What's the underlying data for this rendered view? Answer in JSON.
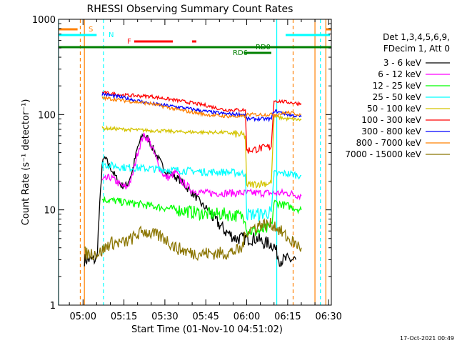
{
  "chart_data": {
    "type": "line",
    "title": "RHESSI Observing Summary Count Rates",
    "xlabel": "Start Time (01-Nov-10 04:51:02)",
    "ylabel": "Count Rate (s⁻¹ detector⁻¹)",
    "y_scale": "log",
    "ylim": [
      1,
      1000
    ],
    "xlim": [
      "04:51:02",
      "06:31:00"
    ],
    "x_ticks": [
      "05:00",
      "05:15",
      "05:30",
      "05:45",
      "06:00",
      "06:15",
      "06:30"
    ],
    "y_ticks": [
      "1",
      "10",
      "100",
      "1000"
    ],
    "grid": false,
    "legend_position": "right",
    "legend_header": [
      "Det 1,3,4,5,6,9,",
      "FDecim 1, Att 0"
    ],
    "footer_date": "17-Oct-2021 00:49",
    "series": [
      {
        "name": "3 - 6 keV",
        "color": "#000000",
        "x": [
          "05:00:30",
          "05:05",
          "05:07",
          "05:08",
          "05:10",
          "05:12",
          "05:14",
          "05:16",
          "05:18",
          "05:20",
          "05:22",
          "05:24",
          "05:26",
          "05:28",
          "05:30",
          "05:32",
          "05:34",
          "05:36",
          "05:38",
          "05:40",
          "05:42",
          "05:44",
          "05:46",
          "05:48",
          "05:50",
          "05:52",
          "05:54",
          "05:56",
          "05:58",
          "06:00",
          "06:02",
          "06:04",
          "06:06",
          "06:08",
          "06:10",
          "06:12",
          "06:14",
          "06:16",
          "06:18"
        ],
        "y": [
          3,
          3,
          30,
          35,
          28,
          22,
          18,
          18,
          25,
          45,
          62,
          55,
          42,
          33,
          26,
          24,
          22,
          20,
          17,
          15,
          13,
          11,
          10,
          8,
          7,
          6,
          5.5,
          5,
          5,
          5,
          5,
          5,
          4.5,
          4.5,
          4.2,
          3,
          3,
          3,
          3
        ]
      },
      {
        "name": "6 - 12 keV",
        "color": "#ff00ff",
        "x": [
          "05:07",
          "05:10",
          "05:12",
          "05:14",
          "05:16",
          "05:18",
          "05:20",
          "05:22",
          "05:24",
          "05:26",
          "05:28",
          "05:30",
          "05:32",
          "05:34",
          "05:36",
          "05:38",
          "05:40",
          "05:45",
          "05:50",
          "05:55",
          "06:00",
          "06:05",
          "06:10",
          "06:15",
          "06:20"
        ],
        "y": [
          20,
          22,
          20,
          18,
          17,
          22,
          40,
          60,
          55,
          40,
          28,
          22,
          22,
          25,
          20,
          18,
          16,
          15,
          15,
          15,
          15,
          15,
          15,
          15,
          14
        ]
      },
      {
        "name": "12 - 25 keV",
        "color": "#00ff00",
        "x": [
          "05:07",
          "05:15",
          "05:25",
          "05:35",
          "05:45",
          "05:52",
          "05:59:30",
          "06:00",
          "06:05",
          "06:09",
          "06:10",
          "06:15",
          "06:20"
        ],
        "y": [
          13,
          12,
          11,
          10,
          9,
          9,
          8.5,
          6,
          6,
          6.5,
          12,
          11,
          10
        ]
      },
      {
        "name": "25 - 50 keV",
        "color": "#00ffff",
        "x": [
          "05:07",
          "05:15",
          "05:25",
          "05:35",
          "05:45",
          "05:52",
          "05:59:30",
          "06:00",
          "06:05",
          "06:09",
          "06:10",
          "06:15",
          "06:20"
        ],
        "y": [
          30,
          28,
          27,
          26,
          25,
          25,
          24,
          9,
          9,
          9.5,
          24,
          24,
          23
        ]
      },
      {
        "name": "50 - 100 keV",
        "color": "#d4c400",
        "x": [
          "05:07",
          "05:15",
          "05:25",
          "05:35",
          "05:45",
          "05:52",
          "05:59:30",
          "06:00",
          "06:05",
          "06:09",
          "06:10",
          "06:15",
          "06:20"
        ],
        "y": [
          72,
          70,
          68,
          66,
          65,
          65,
          60,
          18,
          19,
          19,
          95,
          90,
          88
        ]
      },
      {
        "name": "100 - 300 keV",
        "color": "#ff0000",
        "x": [
          "05:07",
          "05:15",
          "05:25",
          "05:35",
          "05:45",
          "05:52",
          "05:59:30",
          "06:00",
          "06:05",
          "06:09",
          "06:10",
          "06:15",
          "06:20"
        ],
        "y": [
          170,
          160,
          155,
          140,
          125,
          112,
          112,
          42,
          44,
          46,
          140,
          135,
          130
        ]
      },
      {
        "name": "300 - 800 keV",
        "color": "#0000ff",
        "x": [
          "05:07",
          "05:15",
          "05:25",
          "05:35",
          "05:45",
          "05:52",
          "05:59:30",
          "06:00",
          "06:05",
          "06:09",
          "06:10",
          "06:15",
          "06:20"
        ],
        "y": [
          165,
          150,
          130,
          120,
          108,
          102,
          100,
          90,
          90,
          90,
          110,
          100,
          95
        ]
      },
      {
        "name": "800 - 7000 keV",
        "color": "#ff8000",
        "x": [
          "05:07",
          "05:15",
          "05:25",
          "05:35",
          "05:45",
          "05:52",
          "05:59:30",
          "06:00",
          "06:05",
          "06:09",
          "06:10",
          "06:15",
          "06:20"
        ],
        "y": [
          150,
          140,
          130,
          112,
          100,
          96,
          95,
          100,
          100,
          100,
          100,
          105,
          100
        ]
      },
      {
        "name": "7000 - 15000 keV",
        "color": "#8b7500",
        "x": [
          "05:00:30",
          "05:06",
          "05:10",
          "05:15",
          "05:18",
          "05:22",
          "05:26",
          "05:30",
          "05:34",
          "05:40",
          "05:46",
          "05:52",
          "05:58",
          "06:00",
          "06:05",
          "06:09",
          "06:10",
          "06:15",
          "06:20"
        ],
        "y": [
          3.5,
          3.5,
          4.5,
          4.5,
          5,
          6,
          5.5,
          5,
          4,
          3.5,
          3.5,
          3.5,
          3.8,
          6,
          7,
          7,
          7,
          5,
          4
        ]
      }
    ],
    "annotations": [
      {
        "label": "S",
        "color": "#ff8000",
        "x_start": "04:51:02",
        "x_end": "04:58"
      },
      {
        "label": "N",
        "color": "#00ffff",
        "x_start": "04:51:02",
        "x_end": "05:05"
      },
      {
        "label": "F",
        "color": "#ff0000",
        "x_start": "05:17",
        "x_end": "05:30"
      },
      {
        "label": "RD0",
        "color": "#008000",
        "x_start": "04:51:02",
        "x_end": "06:31:00"
      },
      {
        "label": "RD6",
        "color": "#008000",
        "x_start": "05:59",
        "x_end": "06:09"
      }
    ],
    "vertical_lines": [
      {
        "time": "04:51:02",
        "color": "#00ffff",
        "style": "solid"
      },
      {
        "time": "04:59",
        "color": "#ff8000",
        "style": "dashed"
      },
      {
        "time": "05:00:30",
        "color": "#ff8000",
        "style": "solid"
      },
      {
        "time": "05:07:30",
        "color": "#00ffff",
        "style": "dashed"
      },
      {
        "time": "06:11",
        "color": "#00ffff",
        "style": "solid"
      },
      {
        "time": "06:17",
        "color": "#ff8000",
        "style": "dashed"
      },
      {
        "time": "06:25",
        "color": "#ff8000",
        "style": "solid"
      },
      {
        "time": "06:27",
        "color": "#00ffff",
        "style": "dashed"
      },
      {
        "time": "06:29",
        "color": "#ff8000",
        "style": "solid"
      }
    ]
  }
}
